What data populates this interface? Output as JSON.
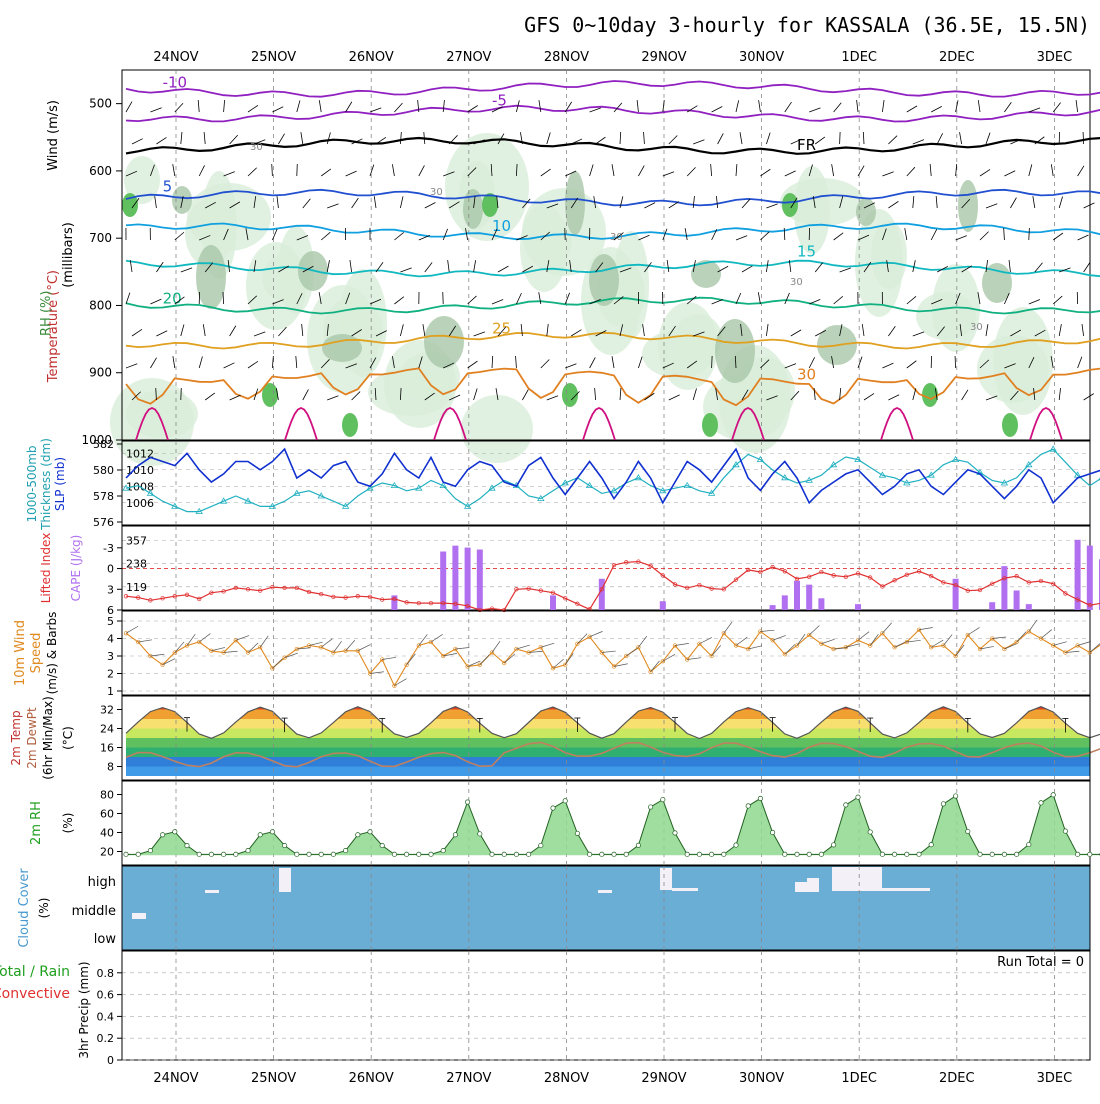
{
  "chart_data": {
    "type": "meteogram",
    "title": "GFS 0~10day 3-hourly for KASSALA (36.5E, 15.5N)",
    "dates": [
      "24NOV",
      "25NOV",
      "26NOV",
      "27NOV",
      "28NOV",
      "29NOV",
      "30NOV",
      "1DEC",
      "2DEC",
      "3DEC"
    ],
    "time_steps": 81,
    "panels": {
      "upper_air": {
        "ylabel_parts": [
          "Wind (m/s)",
          "Temperature (°C)",
          "(millibars)",
          "RH (%)"
        ],
        "yticks": [
          500,
          600,
          700,
          800,
          900,
          1000
        ],
        "ylim": [
          450,
          1000
        ],
        "isotherms": [
          {
            "label": "-10",
            "p": 478,
            "color": "#9020c0"
          },
          {
            "label": "-5",
            "p": 515,
            "color": "#9020c0"
          },
          {
            "label": "FR",
            "p": 563,
            "color": "#000000"
          },
          {
            "label": "5",
            "p": 640,
            "color": "#2050d0"
          },
          {
            "label": "10",
            "p": 690,
            "color": "#10a0e0"
          },
          {
            "label": "15",
            "p": 745,
            "color": "#10b8c0"
          },
          {
            "label": "20",
            "p": 800,
            "color": "#10b080"
          },
          {
            "label": "25",
            "p": 852,
            "color": "#e0a020"
          },
          {
            "label": "30",
            "p": 905,
            "color": "#e08020"
          }
        ],
        "rh_label": "30"
      },
      "slp_thickness": {
        "ylabel": [
          "1000-500mb",
          "Thickness (dm)",
          "SLP (mb)"
        ],
        "thickness_ticks": [
          576,
          578,
          580,
          582
        ],
        "slp_ticks": [
          1006,
          1008,
          1010,
          1012
        ],
        "slp": [
          1009.0,
          1010.5,
          1011.5,
          1011.0,
          1010.5,
          1012.0,
          1010.0,
          1008.5,
          1009.5,
          1011.0,
          1011.0,
          1010.0,
          1011.0,
          1012.5,
          1009.0,
          1010.0,
          1009.0,
          1010.5,
          1011.0,
          1008.5,
          1008.0,
          1009.5,
          1012.0,
          1010.0,
          1009.0,
          1011.5,
          1008.5,
          1008.0,
          1010.0,
          1011.0,
          1010.5,
          1008.5,
          1008.0,
          1010.5,
          1011.5,
          1009.0,
          1007.0,
          1009.0,
          1011.0,
          1009.0,
          1006.5,
          1008.5,
          1011.0,
          1009.0,
          1006.0,
          1008.5,
          1011.0,
          1010.0,
          1008.5,
          1010.5,
          1012.5,
          1009.0,
          1007.5,
          1009.5,
          1011.0,
          1009.0,
          1006.0,
          1007.5,
          1008.5,
          1009.5,
          1010.0,
          1008.5,
          1007.0,
          1008.0,
          1009.5,
          1010.0,
          1008.0,
          1007.0,
          1008.5,
          1010.0,
          1009.5,
          1008.0,
          1006.5,
          1008.0,
          1010.0,
          1009.0,
          1006.0,
          1007.5,
          1009.0,
          1009.5,
          1010.0
        ],
        "thickness": [
          578.6,
          578.8,
          578.2,
          577.6,
          577.2,
          576.8,
          576.8,
          577.2,
          577.6,
          578.0,
          577.6,
          577.2,
          577.2,
          577.6,
          578.2,
          578.4,
          578.0,
          577.6,
          577.2,
          578.0,
          578.6,
          579.0,
          578.8,
          578.4,
          578.6,
          579.2,
          578.8,
          577.8,
          577.2,
          577.8,
          578.6,
          579.2,
          578.8,
          578.0,
          577.8,
          578.4,
          579.0,
          579.4,
          578.8,
          578.2,
          578.4,
          579.0,
          579.4,
          578.8,
          578.4,
          578.6,
          578.8,
          578.4,
          578.2,
          579.4,
          580.4,
          581.2,
          580.8,
          580.0,
          579.4,
          579.0,
          579.2,
          579.6,
          580.4,
          581.0,
          580.8,
          580.2,
          579.6,
          579.4,
          579.0,
          579.2,
          579.6,
          580.4,
          580.8,
          580.6,
          579.8,
          579.2,
          579.0,
          579.4,
          580.4,
          581.2,
          581.6,
          580.6,
          579.6,
          578.8,
          579.4
        ]
      },
      "cape_li": {
        "ylabel": [
          "Lifted Index",
          "CAPE (J/kg)"
        ],
        "li_ticks": [
          "-3",
          "0",
          "3",
          "6"
        ],
        "cape_ticks": [
          119,
          238,
          357
        ],
        "li": [
          4.0,
          4.2,
          4.6,
          4.3,
          4.0,
          3.8,
          4.4,
          3.5,
          3.3,
          2.8,
          3.0,
          3.2,
          2.7,
          2.8,
          2.8,
          3.4,
          3.7,
          4.1,
          4.2,
          4.0,
          4.1,
          4.5,
          4.4,
          4.9,
          5.0,
          5.0,
          5.0,
          5.1,
          5.4,
          6.0,
          5.8,
          6.0,
          3.0,
          2.9,
          3.2,
          3.5,
          4.3,
          5.1,
          5.9,
          3.0,
          -0.5,
          -0.9,
          -1.0,
          -0.4,
          1.0,
          2.3,
          2.8,
          2.4,
          2.9,
          3.0,
          1.6,
          0.2,
          0.5,
          -0.2,
          0.4,
          1.5,
          1.2,
          0.5,
          1.0,
          1.2,
          0.7,
          1.3,
          2.6,
          1.7,
          0.9,
          0.4,
          1.1,
          2.0,
          2.4,
          3.2,
          3.1,
          2.2,
          1.4,
          1.1,
          2.0,
          1.8,
          2.2,
          3.6,
          4.5,
          5.3,
          5.0
        ],
        "cape": [
          0,
          0,
          0,
          0,
          0,
          0,
          0,
          0,
          0,
          0,
          0,
          0,
          0,
          0,
          0,
          0,
          0,
          0,
          0,
          0,
          0,
          0,
          0,
          0,
          0,
          0,
          0,
          0,
          0,
          0,
          0,
          0,
          0,
          0,
          0,
          0,
          0,
          0,
          0,
          0,
          0,
          0,
          0,
          0,
          0,
          0,
          0,
          0,
          0,
          0,
          0,
          0,
          0,
          0,
          0,
          0,
          0,
          0,
          0,
          0,
          0,
          0,
          0,
          0,
          0,
          0,
          0,
          0,
          0,
          0,
          0,
          0,
          0,
          0,
          0,
          0,
          0,
          0,
          0,
          0,
          0
        ]
      },
      "wind10m": {
        "ylabel": [
          "10m Wind",
          "Speed",
          "(m/s) & Barbs"
        ],
        "yticks": [
          1,
          2,
          3,
          4,
          5
        ],
        "speed": [
          4.3,
          3.8,
          3.0,
          2.5,
          3.2,
          3.6,
          3.8,
          3.3,
          3.2,
          3.9,
          3.2,
          3.5,
          2.3,
          2.9,
          3.4,
          3.6,
          3.5,
          3.2,
          3.3,
          3.3,
          2.0,
          2.8,
          1.3,
          2.5,
          3.6,
          3.8,
          3.0,
          3.4,
          2.4,
          2.5,
          3.2,
          2.6,
          3.4,
          3.2,
          3.5,
          2.3,
          2.5,
          3.7,
          4.1,
          3.2,
          2.4,
          3.0,
          3.5,
          2.1,
          2.7,
          3.6,
          2.8,
          3.7,
          3.0,
          4.3,
          3.6,
          3.4,
          4.4,
          3.9,
          3.1,
          3.6,
          4.2,
          3.7,
          3.4,
          3.5,
          3.9,
          3.6,
          4.3,
          3.5,
          3.8,
          4.5,
          3.5,
          3.6,
          3.0,
          4.2,
          3.4,
          4.0,
          3.4,
          3.8,
          4.4,
          4.0,
          3.6,
          3.2,
          3.6,
          3.2,
          3.7
        ]
      },
      "temp2m": {
        "ylabel": [
          "2m Temp",
          "2m DewPt",
          "(6hr Min/Max)",
          "(°C)"
        ],
        "yticks": [
          8,
          16,
          24,
          32
        ]
      },
      "rh2m": {
        "ylabel": [
          "2m RH",
          "(%)"
        ],
        "yticks": [
          20,
          40,
          60,
          80
        ]
      },
      "cloud": {
        "ylabel": [
          "Cloud Cover",
          "(%)"
        ],
        "levels": [
          "high",
          "middle",
          "low"
        ]
      },
      "precip": {
        "ylabel": [
          "Total / Rain",
          "Convective",
          "3hr Precip (mm)"
        ],
        "yticks": [
          "0",
          "0.2",
          "0.4",
          "0.6",
          "0.8"
        ],
        "run_total": "Run Total = 0"
      }
    }
  }
}
